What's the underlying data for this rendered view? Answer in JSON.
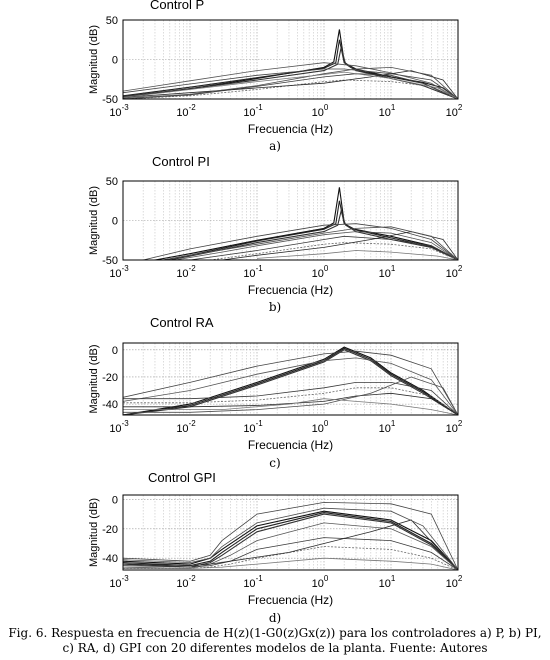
{
  "caption": {
    "line1": "Fig. 6. Respuesta en frecuencia de H(z)(1-G0(z)Gx(z)) para los controladores a) P, b) PI,",
    "line2": "c) RA, d) GPI con 20 diferentes modelos de la planta. Fuente: Autores"
  },
  "chart_data": [
    {
      "type": "line",
      "title": "Control P",
      "panel_label": "a)",
      "xlabel": "Frecuencia  (Hz)",
      "ylabel": "Magnitud (dB)",
      "xscale": "log",
      "xlim": [
        0.001,
        100
      ],
      "ylim": [
        -50,
        50
      ],
      "yticks": [
        -50,
        0,
        50
      ],
      "xtick_labels": [
        "10-3",
        "10-2",
        "10-1",
        "100",
        "101",
        "102"
      ],
      "grid": true,
      "series_count": 20,
      "series": [
        {
          "x": [
            0.001,
            0.01,
            0.1,
            1,
            1.4,
            1.7,
            2.0,
            2.5,
            4,
            10,
            30,
            60,
            100
          ],
          "values": [
            -48,
            -37,
            -24,
            -10,
            -3,
            38,
            -3,
            -10,
            -16,
            -22,
            -29,
            -36,
            -50
          ]
        },
        {
          "x": [
            0.001,
            0.01,
            0.1,
            1,
            1.5,
            1.7,
            2.0,
            3,
            10,
            30,
            100
          ],
          "values": [
            -46,
            -35,
            -23,
            -11,
            -4,
            25,
            -4,
            -12,
            -22,
            -30,
            -50
          ]
        },
        {
          "x": [
            0.001,
            0.01,
            0.1,
            1,
            1.6,
            1.8,
            2.1,
            3,
            10,
            30,
            100
          ],
          "values": [
            -47,
            -37,
            -26,
            -14,
            -6,
            15,
            -6,
            -14,
            -24,
            -33,
            -50
          ]
        },
        {
          "x": [
            0.001,
            0.01,
            0.1,
            1,
            2,
            10,
            40,
            100
          ],
          "values": [
            -42,
            -31,
            -20,
            -12,
            -12,
            -18,
            -26,
            -50
          ]
        },
        {
          "x": [
            0.001,
            0.01,
            0.1,
            1,
            3,
            10,
            40,
            100
          ],
          "values": [
            -40,
            -27,
            -14,
            -4,
            -8,
            -17,
            -30,
            -50
          ]
        },
        {
          "x": [
            0.001,
            0.01,
            0.1,
            1,
            3,
            10,
            30,
            100
          ],
          "values": [
            -50,
            -45,
            -34,
            -22,
            -18,
            -20,
            -30,
            -50
          ]
        },
        {
          "x": [
            0.001,
            0.01,
            0.1,
            1,
            2,
            10,
            40,
            100
          ],
          "values": [
            -50,
            -46,
            -38,
            -28,
            -26,
            -28,
            -34,
            -50
          ]
        },
        {
          "x": [
            0.001,
            0.01,
            0.1,
            1,
            5,
            20,
            60,
            100
          ],
          "values": [
            -48,
            -42,
            -36,
            -30,
            -22,
            -14,
            -26,
            -50
          ]
        },
        {
          "x": [
            0.001,
            0.01,
            0.1,
            1,
            3,
            10,
            40,
            100
          ],
          "values": [
            -49,
            -44,
            -33,
            -18,
            -12,
            -10,
            -20,
            -50
          ]
        },
        {
          "x": [
            0.001,
            0.01,
            0.1,
            1,
            2,
            10,
            50,
            100
          ],
          "values": [
            -48,
            -38,
            -28,
            -19,
            -16,
            -24,
            -36,
            -50
          ]
        }
      ]
    },
    {
      "type": "line",
      "title": "Control PI",
      "panel_label": "b)",
      "xlabel": "Frecuencia  (Hz)",
      "ylabel": "Magnitud (dB)",
      "xscale": "log",
      "xlim": [
        0.001,
        100
      ],
      "ylim": [
        -50,
        50
      ],
      "yticks": [
        -50,
        0,
        50
      ],
      "xtick_labels": [
        "10-3",
        "10-2",
        "10-1",
        "100",
        "101",
        "102"
      ],
      "grid": true,
      "series_count": 20,
      "series": [
        {
          "x": [
            0.003,
            0.01,
            0.1,
            1,
            1.4,
            1.7,
            2.0,
            2.5,
            10,
            40,
            100
          ],
          "values": [
            -50,
            -42,
            -25,
            -10,
            -3,
            42,
            -3,
            -10,
            -20,
            -32,
            -50
          ]
        },
        {
          "x": [
            0.004,
            0.01,
            0.1,
            1,
            1.5,
            1.7,
            2.0,
            3,
            10,
            40,
            100
          ],
          "values": [
            -50,
            -44,
            -26,
            -11,
            -4,
            25,
            -4,
            -12,
            -22,
            -33,
            -50
          ]
        },
        {
          "x": [
            0.005,
            0.01,
            0.1,
            1,
            1.6,
            1.8,
            2.1,
            3,
            10,
            40,
            100
          ],
          "values": [
            -50,
            -45,
            -28,
            -14,
            -6,
            12,
            -6,
            -14,
            -24,
            -34,
            -50
          ]
        },
        {
          "x": [
            0.002,
            0.01,
            0.1,
            1,
            3,
            10,
            40,
            100
          ],
          "values": [
            -50,
            -36,
            -20,
            -6,
            -4,
            -10,
            -24,
            -50
          ]
        },
        {
          "x": [
            0.006,
            0.03,
            0.1,
            1,
            3,
            10,
            40,
            100
          ],
          "values": [
            -50,
            -40,
            -32,
            -18,
            -14,
            -16,
            -28,
            -50
          ]
        },
        {
          "x": [
            0.01,
            0.1,
            1,
            2,
            10,
            40,
            100
          ],
          "values": [
            -50,
            -38,
            -24,
            -20,
            -24,
            -32,
            -50
          ]
        },
        {
          "x": [
            0.02,
            0.1,
            1,
            2,
            10,
            40,
            100
          ],
          "values": [
            -50,
            -42,
            -30,
            -28,
            -30,
            -36,
            -50
          ]
        },
        {
          "x": [
            0.03,
            0.1,
            1,
            5,
            20,
            60,
            100
          ],
          "values": [
            -50,
            -44,
            -34,
            -24,
            -14,
            -24,
            -50
          ]
        },
        {
          "x": [
            0.004,
            0.01,
            0.1,
            1,
            3,
            10,
            40,
            100
          ],
          "values": [
            -50,
            -44,
            -30,
            -16,
            -10,
            -8,
            -20,
            -50
          ]
        },
        {
          "x": [
            0.1,
            1,
            3,
            10,
            50,
            100
          ],
          "values": [
            -48,
            -42,
            -38,
            -40,
            -45,
            -50
          ]
        }
      ]
    },
    {
      "type": "line",
      "title": "Control RA",
      "panel_label": "c)",
      "xlabel": "Frecuencia  (Hz)",
      "ylabel": "Magnitud (dB)",
      "xscale": "log",
      "xlim": [
        0.001,
        100
      ],
      "ylim": [
        -48,
        5
      ],
      "yticks": [
        -40,
        -20,
        0
      ],
      "xtick_labels": [
        "10-3",
        "10-2",
        "10-1",
        "100",
        "101",
        "102"
      ],
      "grid": true,
      "series_count": 20,
      "series": [
        {
          "x": [
            0.001,
            0.01,
            0.1,
            1,
            2,
            5,
            10,
            30,
            100
          ],
          "values": [
            -48,
            -40,
            -24,
            -7,
            2,
            -6,
            -17,
            -30,
            -48
          ]
        },
        {
          "x": [
            0.001,
            0.01,
            0.1,
            1,
            2,
            5,
            10,
            30,
            100
          ],
          "values": [
            -48,
            -41,
            -25,
            -8,
            1,
            -7,
            -18,
            -31,
            -48
          ]
        },
        {
          "x": [
            0.001,
            0.01,
            0.1,
            1,
            2,
            5,
            10,
            30,
            100
          ],
          "values": [
            -48,
            -42,
            -26,
            -9,
            0,
            -8,
            -19,
            -32,
            -48
          ]
        },
        {
          "x": [
            0.001,
            0.01,
            0.1,
            1,
            3,
            10,
            40,
            100
          ],
          "values": [
            -35,
            -24,
            -12,
            -3,
            -1,
            -4,
            -14,
            -48
          ]
        },
        {
          "x": [
            0.001,
            0.01,
            0.1,
            1,
            3,
            10,
            40,
            100
          ],
          "values": [
            -38,
            -30,
            -18,
            -8,
            -6,
            -10,
            -22,
            -48
          ]
        },
        {
          "x": [
            0.001,
            0.01,
            0.1,
            1,
            3,
            10,
            40,
            100
          ],
          "values": [
            -36,
            -36,
            -34,
            -28,
            -24,
            -24,
            -30,
            -48
          ]
        },
        {
          "x": [
            0.001,
            0.01,
            0.1,
            1,
            3,
            10,
            40,
            100
          ],
          "values": [
            -39,
            -39,
            -37,
            -32,
            -28,
            -28,
            -34,
            -48
          ]
        },
        {
          "x": [
            0.001,
            0.01,
            0.1,
            1,
            3,
            10,
            40,
            100
          ],
          "values": [
            -42,
            -42,
            -41,
            -38,
            -34,
            -32,
            -36,
            -48
          ]
        },
        {
          "x": [
            0.001,
            0.01,
            0.1,
            1,
            5,
            20,
            60,
            100
          ],
          "values": [
            -46,
            -46,
            -44,
            -40,
            -32,
            -20,
            -28,
            -48
          ]
        },
        {
          "x": [
            0.001,
            0.03,
            0.3,
            1,
            3,
            10,
            40,
            100
          ],
          "values": [
            -44,
            -44,
            -40,
            -36,
            -38,
            -40,
            -44,
            -48
          ]
        }
      ]
    },
    {
      "type": "line",
      "title": "Control GPI",
      "panel_label": "d)",
      "xlabel": "Frecuencia  (Hz)",
      "ylabel": "Magnitud (dB)",
      "xscale": "log",
      "xlim": [
        0.001,
        100
      ],
      "ylim": [
        -48,
        3
      ],
      "yticks": [
        -40,
        -20,
        0
      ],
      "xtick_labels": [
        "10-3",
        "10-2",
        "10-1",
        "100",
        "101",
        "102"
      ],
      "grid": true,
      "series_count": 20,
      "series": [
        {
          "x": [
            0.001,
            0.01,
            0.02,
            0.03,
            0.1,
            1,
            10,
            40,
            100
          ],
          "values": [
            -42,
            -44,
            -40,
            -34,
            -18,
            -8,
            -14,
            -28,
            -48
          ]
        },
        {
          "x": [
            0.001,
            0.01,
            0.02,
            0.03,
            0.1,
            1,
            10,
            40,
            100
          ],
          "values": [
            -43,
            -45,
            -42,
            -36,
            -20,
            -9,
            -15,
            -30,
            -48
          ]
        },
        {
          "x": [
            0.001,
            0.01,
            0.02,
            0.03,
            0.1,
            1,
            10,
            40,
            100
          ],
          "values": [
            -44,
            -46,
            -43,
            -38,
            -22,
            -10,
            -16,
            -31,
            -48
          ]
        },
        {
          "x": [
            0.001,
            0.01,
            0.02,
            0.03,
            0.1,
            1,
            10,
            40,
            100
          ],
          "values": [
            -40,
            -42,
            -38,
            -28,
            -10,
            -2,
            -3,
            -10,
            -48
          ]
        },
        {
          "x": [
            0.001,
            0.01,
            0.02,
            0.04,
            0.1,
            1,
            10,
            40,
            100
          ],
          "values": [
            -46,
            -47,
            -44,
            -38,
            -28,
            -16,
            -20,
            -32,
            -48
          ]
        },
        {
          "x": [
            0.001,
            0.01,
            0.02,
            0.04,
            0.1,
            1,
            10,
            40,
            100
          ],
          "values": [
            -45,
            -46,
            -45,
            -42,
            -34,
            -26,
            -28,
            -36,
            -48
          ]
        },
        {
          "x": [
            0.001,
            0.01,
            0.02,
            0.04,
            0.1,
            1,
            10,
            40,
            100
          ],
          "values": [
            -47,
            -47,
            -46,
            -44,
            -40,
            -32,
            -34,
            -40,
            -48
          ]
        },
        {
          "x": [
            0.001,
            0.01,
            0.02,
            0.04,
            0.3,
            1,
            5,
            20,
            100
          ],
          "values": [
            -44,
            -45,
            -44,
            -42,
            -36,
            -30,
            -22,
            -14,
            -48
          ]
        },
        {
          "x": [
            0.001,
            0.01,
            0.02,
            0.03,
            0.1,
            1,
            10,
            30,
            100
          ],
          "values": [
            -41,
            -43,
            -40,
            -32,
            -16,
            -6,
            -8,
            -18,
            -48
          ]
        },
        {
          "x": [
            0.001,
            0.01,
            0.03,
            0.1,
            1,
            10,
            40,
            100
          ],
          "values": [
            -47,
            -47,
            -46,
            -44,
            -40,
            -42,
            -44,
            -48
          ]
        }
      ]
    }
  ]
}
